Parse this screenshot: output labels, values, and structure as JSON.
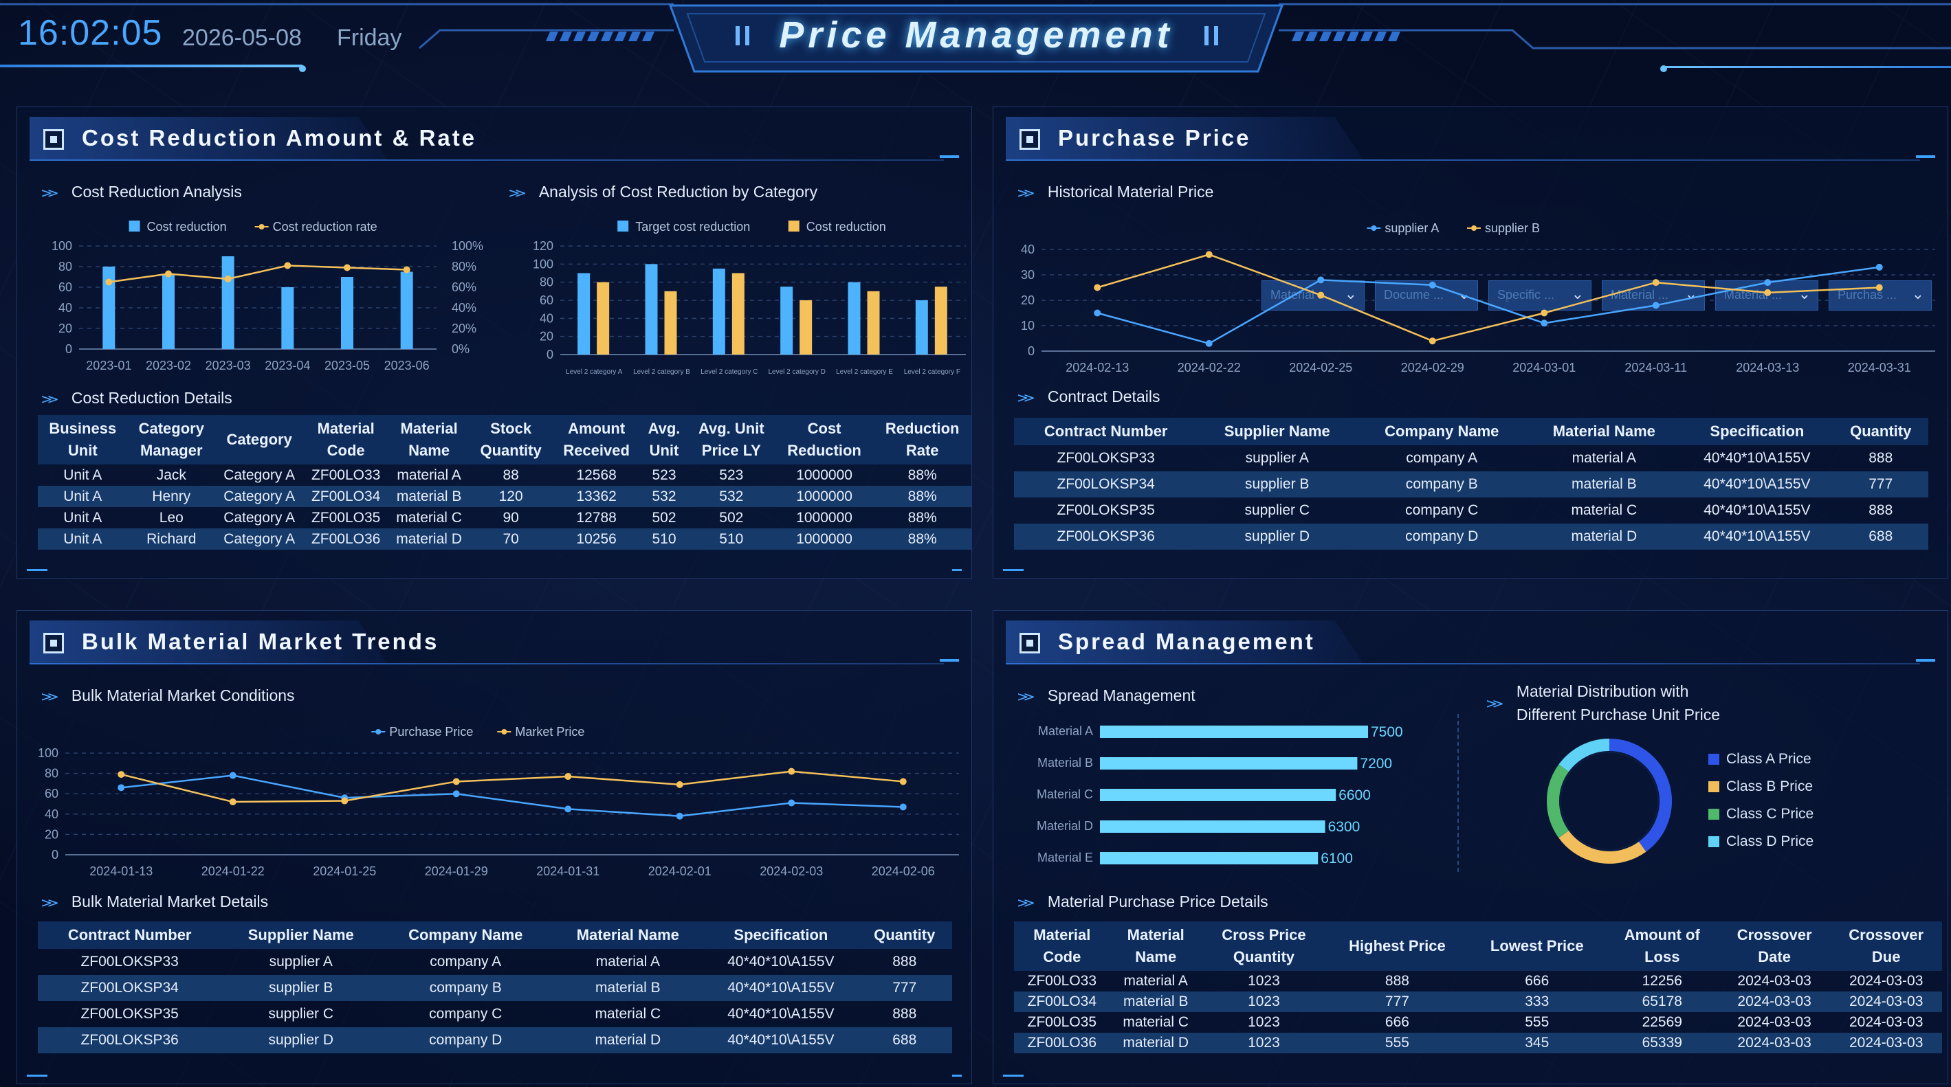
{
  "header": {
    "time": "16:02:05",
    "date": "2026-05-08",
    "weekday": "Friday",
    "title": "Price Management"
  },
  "panels": {
    "cost": {
      "title": "Cost Reduction Amount & Rate"
    },
    "purchase": {
      "title": "Purchase Price"
    },
    "bulk": {
      "title": "Bulk Material Market Trends"
    },
    "spread": {
      "title": "Spread Management"
    }
  },
  "subtitles": {
    "cost_analysis": "Cost Reduction Analysis",
    "category_analysis": "Analysis of Cost Reduction by Category",
    "cost_details": "Cost Reduction Details",
    "historical": "Historical Material Price",
    "contract": "Contract Details",
    "bulk_conditions": "Bulk Material Market Conditions",
    "bulk_details": "Bulk Material Market Details",
    "spread_mgmt": "Spread Management",
    "distribution_line1": "Material Distribution with",
    "distribution_line2": "Different Purchase Unit Price",
    "spread_details": "Material Purchase Price Details"
  },
  "filters": [
    "Material ...",
    "Docume ...",
    "Specific ...",
    "Material ...",
    "Material ...",
    "Purchas ..."
  ],
  "colors": {
    "blue": "#4aa6ff",
    "bar_blue": "#4db3ff",
    "yellow": "#f5c15a",
    "cyan": "#6cd7ff",
    "classA": "#2f55e8",
    "classB": "#f2be5c",
    "classC": "#4fb86a",
    "classD": "#5fd2f5"
  },
  "chart_data": [
    {
      "id": "cost_reduction_analysis",
      "type": "bar",
      "categories": [
        "2023-01",
        "2023-02",
        "2023-03",
        "2023-04",
        "2023-05",
        "2023-06"
      ],
      "series": [
        {
          "name": "Cost reduction",
          "type": "bar",
          "values": [
            80,
            72,
            90,
            60,
            70,
            75
          ]
        },
        {
          "name": "Cost reduction rate",
          "type": "line",
          "values": [
            65,
            73,
            68,
            81,
            79,
            77
          ]
        }
      ],
      "y_ticks": [
        "0",
        "20",
        "40",
        "60",
        "80",
        "100"
      ],
      "y2_ticks": [
        "0%",
        "20%",
        "40%",
        "60%",
        "80%",
        "100%"
      ],
      "ylim": [
        0,
        100
      ],
      "legend": "top"
    },
    {
      "id": "category_analysis",
      "type": "bar",
      "categories": [
        "Level 2 category A",
        "Level 2 category B",
        "Level 2 category C",
        "Level 2 category D",
        "Level 2 category E",
        "Level 2 category F"
      ],
      "series": [
        {
          "name": "Target cost reduction",
          "values": [
            90,
            100,
            95,
            75,
            80,
            60
          ]
        },
        {
          "name": "Cost reduction",
          "values": [
            80,
            70,
            90,
            60,
            70,
            75
          ]
        }
      ],
      "y_ticks": [
        "0",
        "20",
        "40",
        "60",
        "80",
        "100",
        "120"
      ],
      "ylim": [
        0,
        120
      ],
      "legend": "top"
    },
    {
      "id": "historical_material_price",
      "type": "line",
      "x": [
        "2024-02-13",
        "2024-02-22",
        "2024-02-25",
        "2024-02-29",
        "2024-03-01",
        "2024-03-11",
        "2024-03-13",
        "2024-03-31"
      ],
      "series": [
        {
          "name": "supplier A",
          "values": [
            15,
            3,
            28,
            26,
            11,
            18,
            27,
            33
          ]
        },
        {
          "name": "supplier B",
          "values": [
            25,
            38,
            22,
            4,
            15,
            27,
            23,
            25
          ]
        }
      ],
      "y_ticks": [
        "0",
        "10",
        "20",
        "30",
        "40"
      ],
      "ylim": [
        0,
        40
      ],
      "legend": "top"
    },
    {
      "id": "bulk_market_conditions",
      "type": "line",
      "x": [
        "2024-01-13",
        "2024-01-22",
        "2024-01-25",
        "2024-01-29",
        "2024-01-31",
        "2024-02-01",
        "2024-02-03",
        "2024-02-06"
      ],
      "series": [
        {
          "name": "Purchase Price",
          "values": [
            66,
            78,
            56,
            60,
            45,
            38,
            51,
            47
          ]
        },
        {
          "name": "Market Price",
          "values": [
            79,
            52,
            53,
            72,
            77,
            69,
            82,
            72
          ]
        }
      ],
      "y_ticks": [
        "0",
        "20",
        "40",
        "60",
        "80",
        "100"
      ],
      "ylim": [
        0,
        100
      ],
      "legend": "top"
    },
    {
      "id": "spread_management",
      "type": "bar",
      "orientation": "horizontal",
      "categories": [
        "Material A",
        "Material B",
        "Material C",
        "Material D",
        "Material E"
      ],
      "values": [
        7500,
        7200,
        6600,
        6300,
        6100
      ]
    },
    {
      "id": "material_distribution",
      "type": "pie",
      "donut": true,
      "labels": [
        "Class A Price",
        "Class B Price",
        "Class C Price",
        "Class D Price"
      ],
      "values": [
        40,
        25,
        20,
        15
      ]
    }
  ],
  "tables": {
    "cost_details": {
      "headers": [
        [
          "Business",
          "Unit"
        ],
        [
          "Category",
          "Manager"
        ],
        [
          "Category",
          ""
        ],
        [
          "Material",
          "Code"
        ],
        [
          "Material",
          "Name"
        ],
        [
          "Stock",
          "Quantity"
        ],
        [
          "Amount",
          "Received"
        ],
        [
          "Avg.",
          "Unit"
        ],
        [
          "Avg. Unit",
          "Price LY"
        ],
        [
          "Cost",
          "Reduction"
        ],
        [
          "Reduction",
          "Rate"
        ]
      ],
      "rows": [
        [
          "Unit A",
          "Jack",
          "Category A",
          "ZF00LO33",
          "material A",
          "88",
          "12568",
          "523",
          "523",
          "1000000",
          "88%"
        ],
        [
          "Unit A",
          "Henry",
          "Category A",
          "ZF00LO34",
          "material B",
          "120",
          "13362",
          "532",
          "532",
          "1000000",
          "88%"
        ],
        [
          "Unit A",
          "Leo",
          "Category A",
          "ZF00LO35",
          "material C",
          "90",
          "12788",
          "502",
          "502",
          "1000000",
          "88%"
        ],
        [
          "Unit A",
          "Richard",
          "Category A",
          "ZF00LO36",
          "material D",
          "70",
          "10256",
          "510",
          "510",
          "1000000",
          "88%"
        ]
      ]
    },
    "contract": {
      "headers": [
        "Contract Number",
        "Supplier Name",
        "Company Name",
        "Material Name",
        "Specification",
        "Quantity"
      ],
      "rows": [
        [
          "ZF00LOKSP33",
          "supplier A",
          "company A",
          "material A",
          "40*40*10\\A155V",
          "888"
        ],
        [
          "ZF00LOKSP34",
          "supplier B",
          "company B",
          "material B",
          "40*40*10\\A155V",
          "777"
        ],
        [
          "ZF00LOKSP35",
          "supplier C",
          "company C",
          "material C",
          "40*40*10\\A155V",
          "888"
        ],
        [
          "ZF00LOKSP36",
          "supplier D",
          "company D",
          "material D",
          "40*40*10\\A155V",
          "688"
        ]
      ]
    },
    "bulk": {
      "headers": [
        "Contract Number",
        "Supplier Name",
        "Company Name",
        "Material Name",
        "Specification",
        "Quantity"
      ],
      "rows": [
        [
          "ZF00LOKSP33",
          "supplier A",
          "company A",
          "material A",
          "40*40*10\\A155V",
          "888"
        ],
        [
          "ZF00LOKSP34",
          "supplier B",
          "company B",
          "material B",
          "40*40*10\\A155V",
          "777"
        ],
        [
          "ZF00LOKSP35",
          "supplier C",
          "company C",
          "material C",
          "40*40*10\\A155V",
          "888"
        ],
        [
          "ZF00LOKSP36",
          "supplier D",
          "company D",
          "material D",
          "40*40*10\\A155V",
          "688"
        ]
      ]
    },
    "spread": {
      "headers": [
        [
          "Material",
          "Code"
        ],
        [
          "Material",
          "Name"
        ],
        [
          "Cross Price",
          "Quantity"
        ],
        [
          "Highest Price",
          ""
        ],
        [
          "Lowest Price",
          ""
        ],
        [
          "Amount of",
          "Loss"
        ],
        [
          "Crossover",
          "Date"
        ],
        [
          "Crossover",
          "Due"
        ]
      ],
      "rows": [
        [
          "ZF00LO33",
          "material A",
          "1023",
          "888",
          "666",
          "12256",
          "2024-03-03",
          "2024-03-03"
        ],
        [
          "ZF00LO34",
          "material B",
          "1023",
          "777",
          "333",
          "65178",
          "2024-03-03",
          "2024-03-03"
        ],
        [
          "ZF00LO35",
          "material C",
          "1023",
          "666",
          "555",
          "22569",
          "2024-03-03",
          "2024-03-03"
        ],
        [
          "ZF00LO36",
          "material D",
          "1023",
          "555",
          "345",
          "65339",
          "2024-03-03",
          "2024-03-03"
        ]
      ]
    }
  }
}
